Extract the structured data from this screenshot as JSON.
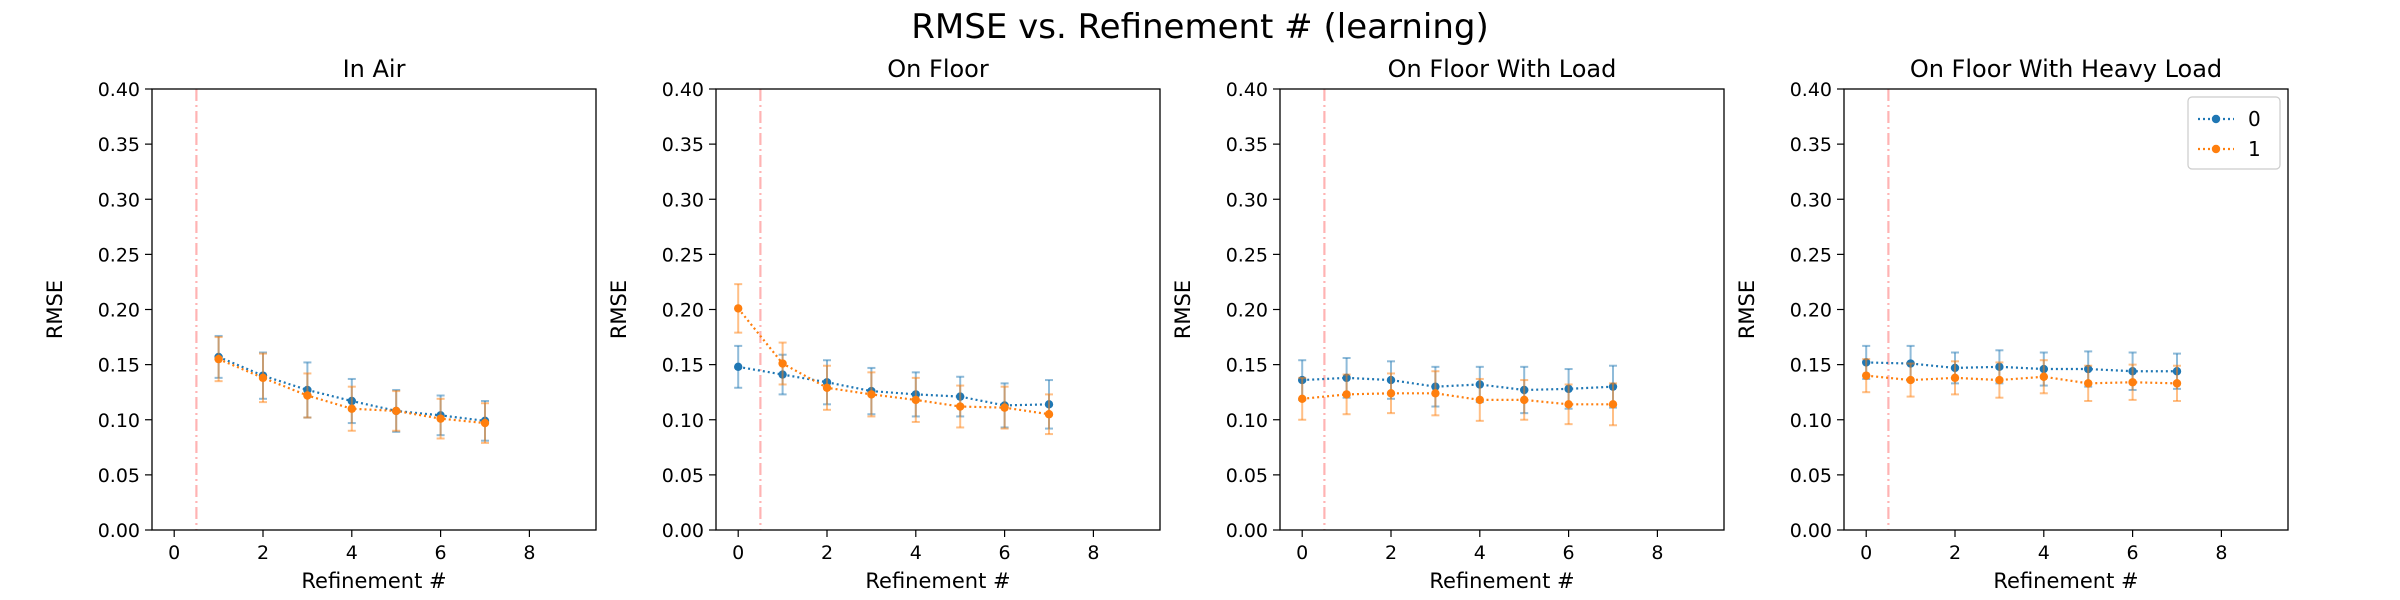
{
  "figure": {
    "suptitle": "RMSE vs. Refinement # (learning)"
  },
  "colors": {
    "series_0": "#1f77b4",
    "series_1": "#ff7f0e",
    "vline": "#ffb3b3"
  },
  "legend": {
    "location": "top-right",
    "panel": "On Floor With Heavy Load",
    "entries": [
      "0",
      "1"
    ]
  },
  "chart_data": [
    {
      "type": "line",
      "title": "In Air",
      "xlabel": "Refinement #",
      "ylabel": "RMSE",
      "xlim": [
        -0.5,
        9.5
      ],
      "ylim": [
        0.0,
        0.4
      ],
      "xticks": [
        "0",
        "2",
        "4",
        "6",
        "8"
      ],
      "yticks": [
        "0.00",
        "0.05",
        "0.10",
        "0.15",
        "0.20",
        "0.25",
        "0.30",
        "0.35",
        "0.40"
      ],
      "grid": false,
      "vline_x": 0.5,
      "series": [
        {
          "name": "0",
          "x": [
            1,
            2,
            3,
            4,
            5,
            6,
            7
          ],
          "y": [
            0.157,
            0.14,
            0.127,
            0.117,
            0.108,
            0.104,
            0.099
          ],
          "yerr": [
            0.019,
            0.021,
            0.025,
            0.02,
            0.019,
            0.018,
            0.018
          ]
        },
        {
          "name": "1",
          "x": [
            1,
            2,
            3,
            4,
            5,
            6,
            7
          ],
          "y": [
            0.155,
            0.138,
            0.122,
            0.11,
            0.108,
            0.101,
            0.097
          ],
          "yerr": [
            0.02,
            0.022,
            0.02,
            0.02,
            0.018,
            0.018,
            0.018
          ]
        }
      ]
    },
    {
      "type": "line",
      "title": "On Floor",
      "xlabel": "Refinement #",
      "ylabel": "RMSE",
      "xlim": [
        -0.5,
        9.5
      ],
      "ylim": [
        0.0,
        0.4
      ],
      "xticks": [
        "0",
        "2",
        "4",
        "6",
        "8"
      ],
      "yticks": [
        "0.00",
        "0.05",
        "0.10",
        "0.15",
        "0.20",
        "0.25",
        "0.30",
        "0.35",
        "0.40"
      ],
      "grid": false,
      "vline_x": 0.5,
      "series": [
        {
          "name": "0",
          "x": [
            0,
            1,
            2,
            3,
            4,
            5,
            6,
            7
          ],
          "y": [
            0.148,
            0.141,
            0.134,
            0.126,
            0.123,
            0.121,
            0.113,
            0.114
          ],
          "yerr": [
            0.019,
            0.018,
            0.02,
            0.021,
            0.02,
            0.018,
            0.02,
            0.022
          ]
        },
        {
          "name": "1",
          "x": [
            0,
            1,
            2,
            3,
            4,
            5,
            6,
            7
          ],
          "y": [
            0.201,
            0.151,
            0.129,
            0.123,
            0.118,
            0.112,
            0.111,
            0.105
          ],
          "yerr": [
            0.022,
            0.019,
            0.02,
            0.02,
            0.02,
            0.019,
            0.019,
            0.018
          ]
        }
      ]
    },
    {
      "type": "line",
      "title": "On Floor With Load",
      "xlabel": "Refinement #",
      "ylabel": "RMSE",
      "xlim": [
        -0.5,
        9.5
      ],
      "ylim": [
        0.0,
        0.4
      ],
      "xticks": [
        "0",
        "2",
        "4",
        "6",
        "8"
      ],
      "yticks": [
        "0.00",
        "0.05",
        "0.10",
        "0.15",
        "0.20",
        "0.25",
        "0.30",
        "0.35",
        "0.40"
      ],
      "grid": false,
      "vline_x": 0.5,
      "series": [
        {
          "name": "0",
          "x": [
            0,
            1,
            2,
            3,
            4,
            5,
            6,
            7
          ],
          "y": [
            0.136,
            0.138,
            0.136,
            0.13,
            0.132,
            0.127,
            0.128,
            0.13
          ],
          "yerr": [
            0.018,
            0.018,
            0.017,
            0.018,
            0.016,
            0.021,
            0.018,
            0.019
          ]
        },
        {
          "name": "1",
          "x": [
            0,
            1,
            2,
            3,
            4,
            5,
            6,
            7
          ],
          "y": [
            0.119,
            0.123,
            0.124,
            0.124,
            0.118,
            0.118,
            0.114,
            0.114
          ],
          "yerr": [
            0.019,
            0.018,
            0.018,
            0.02,
            0.019,
            0.018,
            0.018,
            0.019
          ]
        }
      ]
    },
    {
      "type": "line",
      "title": "On Floor With Heavy Load",
      "xlabel": "Refinement #",
      "ylabel": "RMSE",
      "xlim": [
        -0.5,
        9.5
      ],
      "ylim": [
        0.0,
        0.4
      ],
      "xticks": [
        "0",
        "2",
        "4",
        "6",
        "8"
      ],
      "yticks": [
        "0.00",
        "0.05",
        "0.10",
        "0.15",
        "0.20",
        "0.25",
        "0.30",
        "0.35",
        "0.40"
      ],
      "grid": false,
      "vline_x": 0.5,
      "series": [
        {
          "name": "0",
          "x": [
            0,
            1,
            2,
            3,
            4,
            5,
            6,
            7
          ],
          "y": [
            0.152,
            0.151,
            0.147,
            0.148,
            0.146,
            0.146,
            0.144,
            0.144
          ],
          "yerr": [
            0.015,
            0.016,
            0.014,
            0.015,
            0.015,
            0.016,
            0.017,
            0.016
          ]
        },
        {
          "name": "1",
          "x": [
            0,
            1,
            2,
            3,
            4,
            5,
            6,
            7
          ],
          "y": [
            0.14,
            0.136,
            0.138,
            0.136,
            0.139,
            0.133,
            0.134,
            0.133
          ],
          "yerr": [
            0.015,
            0.015,
            0.015,
            0.016,
            0.015,
            0.016,
            0.016,
            0.016
          ]
        }
      ]
    }
  ]
}
